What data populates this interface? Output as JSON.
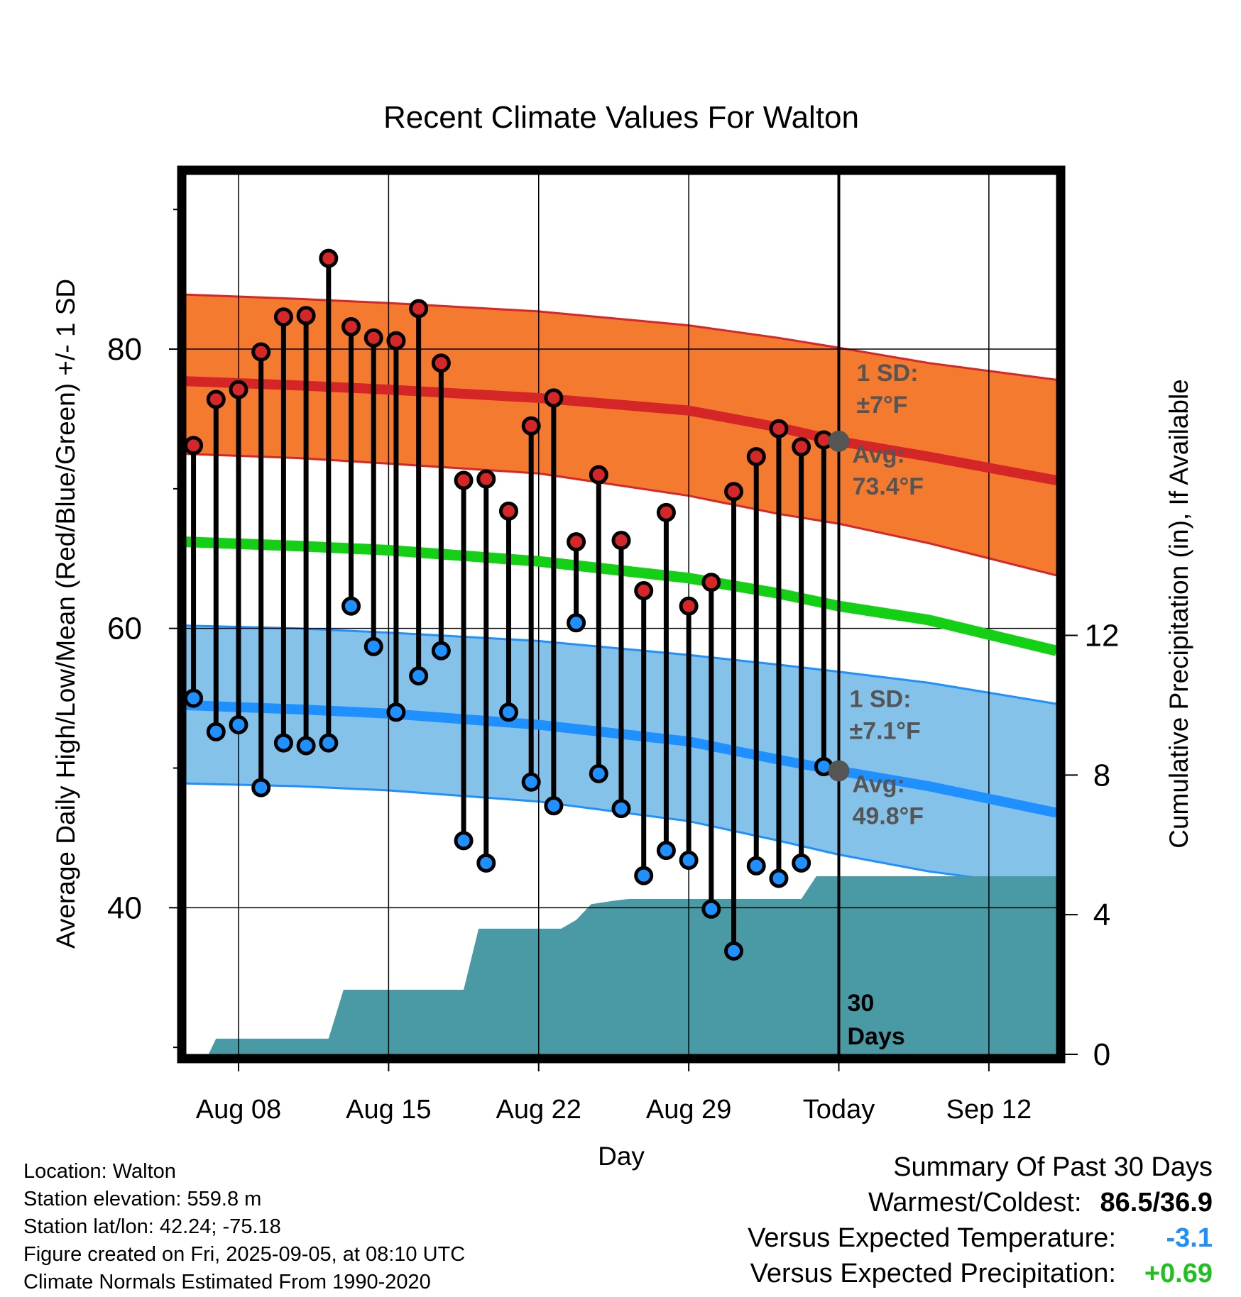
{
  "chart_data": {
    "type": "line",
    "title": "Recent Climate Values For Walton",
    "xlabel": "Day",
    "ylabel": "Average Daily High/Low/Mean (Red/Blue/Green) +/- 1 SD",
    "y2label": "Cumulative Precipitation (in), If Available",
    "xlim": [
      -3.5,
      54.5
    ],
    "ylim": [
      29.5,
      92.5
    ],
    "y2lim": [
      0,
      25.2
    ],
    "x_ticks": [
      {
        "x": 0,
        "label": "Aug 08"
      },
      {
        "x": 10,
        "label": "Aug 15"
      },
      {
        "x": 20,
        "label": "Aug 22"
      },
      {
        "x": 30,
        "label": "Aug 29"
      },
      {
        "x": 40,
        "label": "Today"
      },
      {
        "x": 50,
        "label": "Sep 12"
      }
    ],
    "y_ticks": [
      40,
      60,
      80
    ],
    "y2_ticks": [
      0,
      4,
      8,
      12
    ],
    "grid": true,
    "today_marker": {
      "x": 40,
      "label_line1": "30",
      "label_line2": "Days"
    },
    "normal_high": {
      "x": [
        -3.5,
        4,
        10,
        20,
        30,
        36,
        40,
        46,
        54.5
      ],
      "upper": [
        83.9,
        83.6,
        83.3,
        82.7,
        81.7,
        80.8,
        80.1,
        79.0,
        77.8
      ],
      "mean": [
        77.7,
        77.4,
        77.1,
        76.5,
        75.6,
        74.4,
        73.4,
        72.3,
        70.6
      ],
      "lower": [
        72.5,
        72.2,
        71.8,
        71.1,
        69.5,
        68.2,
        67.5,
        66.1,
        63.8
      ],
      "annot_sd": "1 SD:",
      "annot_sd_value": "±7°F",
      "annot_avg": "Avg:",
      "annot_avg_value": "73.4°F"
    },
    "normal_low": {
      "x": [
        -3.5,
        4,
        10,
        20,
        30,
        36,
        40,
        46,
        54.5
      ],
      "upper": [
        60.2,
        60.0,
        59.7,
        59.1,
        58.1,
        57.4,
        56.9,
        56.1,
        54.6
      ],
      "mean": [
        54.5,
        54.2,
        53.9,
        53.1,
        51.9,
        50.6,
        49.8,
        48.7,
        46.8
      ],
      "lower": [
        48.9,
        48.7,
        48.4,
        47.6,
        46.2,
        44.8,
        43.8,
        42.6,
        41.4
      ],
      "annot_sd": "1 SD:",
      "annot_sd_value": "±7.1°F",
      "annot_avg": "Avg:",
      "annot_avg_value": "49.8°F"
    },
    "normal_mean": {
      "x": [
        -3.5,
        4,
        10,
        20,
        30,
        36,
        40,
        46,
        54.5
      ],
      "values": [
        66.2,
        65.9,
        65.6,
        64.8,
        63.6,
        62.5,
        61.6,
        60.6,
        58.4
      ]
    },
    "daily": {
      "x": [
        -3,
        -1.5,
        0,
        1.5,
        3,
        4.5,
        6,
        7.5,
        9,
        10.5,
        12,
        13.5,
        15,
        16.5,
        18,
        19.5,
        21,
        22.5,
        24,
        25.5,
        27,
        28.5,
        30,
        31.5,
        33,
        34.5,
        36,
        37.5,
        39
      ],
      "high": [
        73.1,
        76.4,
        77.1,
        79.8,
        82.3,
        82.4,
        86.5,
        81.6,
        80.8,
        80.6,
        82.9,
        79.0,
        70.6,
        70.7,
        68.4,
        74.5,
        76.5,
        66.2,
        71.0,
        66.3,
        62.7,
        68.3,
        61.6,
        63.3,
        69.8,
        72.3,
        74.3,
        73.0,
        73.5
      ],
      "low": [
        55.0,
        52.6,
        53.1,
        48.6,
        51.8,
        51.6,
        51.8,
        61.6,
        58.7,
        54.0,
        56.6,
        58.4,
        44.8,
        43.2,
        54.0,
        49.0,
        47.3,
        60.4,
        49.6,
        47.1,
        42.3,
        44.1,
        43.4,
        39.9,
        36.9,
        43.0,
        42.1,
        43.2,
        50.1
      ]
    },
    "precipitation": {
      "x": [
        -3.5,
        -2,
        -1.5,
        3.5,
        6,
        7,
        13.5,
        15,
        16,
        20,
        21.5,
        22.5,
        23.5,
        25,
        26,
        27,
        35,
        36,
        37.5,
        38.5,
        40,
        54.5
      ],
      "values": [
        0,
        0,
        0.45,
        0.45,
        0.45,
        1.85,
        1.85,
        1.85,
        3.6,
        3.6,
        3.6,
        3.85,
        4.3,
        4.4,
        4.45,
        4.45,
        4.45,
        4.45,
        4.45,
        5.1,
        5.1,
        5.1
      ]
    },
    "colors": {
      "high_band": "#f47a2f",
      "high_edge": "#d62728",
      "high_mean": "#d42527",
      "low_band": "#84c2ea",
      "low_edge": "#1e90ff",
      "low_mean": "#1e90ff",
      "mean_line": "#14d014",
      "precip": "#4a9aa5",
      "high_marker": "#d62728",
      "low_marker": "#1e90ff",
      "annot": "#555555"
    }
  },
  "footer": {
    "location": "Location: Walton",
    "elevation": "Station elevation: 559.8 m",
    "latlon": "Station lat/lon: 42.24; -75.18",
    "created": "Figure created on Fri, 2025-09-05, at 08:10 UTC",
    "normals": "Climate Normals Estimated From 1990-2020"
  },
  "summary": {
    "title": "Summary Of Past 30 Days",
    "warm_cold_label": "Warmest/Coldest:",
    "warm_cold_value": "86.5/36.9",
    "temp_label": "Versus Expected Temperature:",
    "temp_value": "-3.1",
    "temp_color": "#1e90ff",
    "precip_label": "Versus Expected Precipitation:",
    "precip_value": "+0.69",
    "precip_color": "#1fc01f"
  }
}
